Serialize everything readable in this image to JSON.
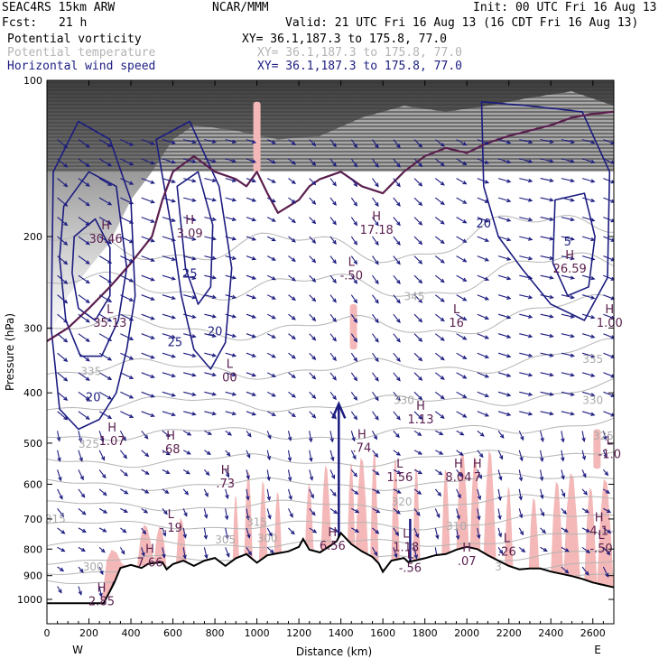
{
  "header": {
    "model": "SEAC4RS 15km ARW",
    "org": "NCAR/MMM",
    "init": "Init: 00 UTC Fri 16 Aug 13",
    "fcst_label": "Fcst:",
    "fcst_value": "21 h",
    "valid": "Valid: 21 UTC Fri 16 Aug 13 (16 CDT Fri 16 Aug 13)"
  },
  "legend": [
    {
      "name": "Potential vorticity",
      "xy": "XY=  36.1,187.3 to 175.8, 77.0",
      "color": "#000000"
    },
    {
      "name": "Potential temperature",
      "xy": "XY=  36.1,187.3 to 175.8, 77.0",
      "color": "#b4b4b4"
    },
    {
      "name": "Horizontal wind speed",
      "xy": "XY=  36.1,187.3 to 175.8, 77.0",
      "color": "#1c1c80"
    }
  ],
  "colors": {
    "pv_shade": "#f4b8b8",
    "pv_contour": "#5a1e4e",
    "theta": "#b4b4b4",
    "wind": "#1c1c80",
    "terrain": "#000000"
  },
  "chart_data": {
    "type": "cross-section",
    "xlabel": "Distance (km)",
    "ylabel": "Pressure (hPa)",
    "xlim": [
      0,
      2700
    ],
    "ylim": [
      1000,
      100
    ],
    "y_scale": "log",
    "x_ticks": [
      "0",
      "200",
      "400",
      "600",
      "800",
      "1000",
      "1200",
      "1400",
      "1600",
      "1800",
      "2000",
      "2200",
      "2400",
      "2600"
    ],
    "y_ticks": [
      "100",
      "200",
      "300",
      "400",
      "500",
      "600",
      "700",
      "800",
      "900",
      "1000"
    ],
    "end_labels": {
      "left": "W",
      "right": "E"
    },
    "terrain": [
      [
        0,
        1017
      ],
      [
        150,
        1017
      ],
      [
        270,
        1017
      ],
      [
        320,
        930
      ],
      [
        350,
        870
      ],
      [
        400,
        858
      ],
      [
        450,
        870
      ],
      [
        480,
        855
      ],
      [
        500,
        852
      ],
      [
        550,
        848
      ],
      [
        570,
        875
      ],
      [
        600,
        855
      ],
      [
        650,
        842
      ],
      [
        700,
        862
      ],
      [
        750,
        842
      ],
      [
        800,
        832
      ],
      [
        850,
        862
      ],
      [
        900,
        833
      ],
      [
        950,
        818
      ],
      [
        1000,
        850
      ],
      [
        1050,
        822
      ],
      [
        1100,
        815
      ],
      [
        1150,
        808
      ],
      [
        1200,
        792
      ],
      [
        1220,
        765
      ],
      [
        1250,
        802
      ],
      [
        1300,
        812
      ],
      [
        1350,
        788
      ],
      [
        1380,
        772
      ],
      [
        1400,
        745
      ],
      [
        1450,
        783
      ],
      [
        1500,
        808
      ],
      [
        1550,
        828
      ],
      [
        1580,
        852
      ],
      [
        1600,
        885
      ],
      [
        1640,
        842
      ],
      [
        1700,
        832
      ],
      [
        1720,
        847
      ],
      [
        1750,
        842
      ],
      [
        1800,
        833
      ],
      [
        1850,
        822
      ],
      [
        1900,
        818
      ],
      [
        1950,
        802
      ],
      [
        2000,
        792
      ],
      [
        2050,
        800
      ],
      [
        2100,
        822
      ],
      [
        2150,
        842
      ],
      [
        2200,
        862
      ],
      [
        2250,
        875
      ],
      [
        2300,
        872
      ],
      [
        2350,
        872
      ],
      [
        2400,
        884
      ],
      [
        2450,
        893
      ],
      [
        2500,
        902
      ],
      [
        2550,
        913
      ],
      [
        2600,
        928
      ],
      [
        2650,
        938
      ],
      [
        2700,
        948
      ]
    ],
    "highs_lows": [
      {
        "type": "H",
        "value": "2.85",
        "x": 260,
        "p": 998
      },
      {
        "type": "H",
        "value": "1.07",
        "x": 310,
        "p": 490
      },
      {
        "type": "H",
        "value": ".68",
        "x": 590,
        "p": 508
      },
      {
        "type": "H",
        "value": ".73",
        "x": 850,
        "p": 592
      },
      {
        "type": "L",
        "value": "-.19",
        "x": 590,
        "p": 720
      },
      {
        "type": "H",
        "value": "7.66",
        "x": 490,
        "p": 840
      },
      {
        "type": "H",
        "value": "6.56",
        "x": 1360,
        "p": 780
      },
      {
        "type": "H",
        "value": ".74",
        "x": 1500,
        "p": 505
      },
      {
        "type": "L",
        "value": "1.56",
        "x": 1680,
        "p": 575
      },
      {
        "type": "H",
        "value": "1.13",
        "x": 1780,
        "p": 445
      },
      {
        "type": "H",
        "value": "8.04",
        "x": 1960,
        "p": 575
      },
      {
        "type": "H",
        "value": "7",
        "x": 2050,
        "p": 575
      },
      {
        "type": "L",
        "value": "1.18",
        "x": 1710,
        "p": 785
      },
      {
        "type": "L",
        "value": "-.56",
        "x": 1730,
        "p": 860
      },
      {
        "type": "H",
        "value": ".07",
        "x": 2000,
        "p": 835
      },
      {
        "type": "L",
        "value": ".26",
        "x": 2190,
        "p": 800
      },
      {
        "type": "H",
        "value": "4.1",
        "x": 2630,
        "p": 730
      },
      {
        "type": "L",
        "value": "-.50",
        "x": 2640,
        "p": 790
      },
      {
        "type": "L",
        "value": "-1.0",
        "x": 2680,
        "p": 520
      },
      {
        "type": "H",
        "value": "17.18",
        "x": 1570,
        "p": 192
      },
      {
        "type": "L",
        "value": "-.50",
        "x": 1450,
        "p": 235
      },
      {
        "type": "L",
        "value": "16",
        "x": 1950,
        "p": 290
      },
      {
        "type": "H",
        "value": "26.59",
        "x": 2490,
        "p": 228
      },
      {
        "type": "H",
        "value": "1.00",
        "x": 2680,
        "p": 290
      },
      {
        "type": "H",
        "value": "30.46",
        "x": 280,
        "p": 200
      },
      {
        "type": "L",
        "value": "35.13",
        "x": 300,
        "p": 290
      },
      {
        "type": "L",
        "value": "00",
        "x": 870,
        "p": 370
      },
      {
        "type": "H",
        "value": "3.09",
        "x": 680,
        "p": 195
      }
    ],
    "wind_speed_labels": [
      {
        "value": "20",
        "x": 220,
        "p": 415
      },
      {
        "value": "25",
        "x": 680,
        "p": 240
      },
      {
        "value": "25",
        "x": 610,
        "p": 325
      },
      {
        "value": "20",
        "x": 800,
        "p": 310
      },
      {
        "value": "20",
        "x": 2080,
        "p": 192
      },
      {
        "value": "5",
        "x": 2480,
        "p": 208
      }
    ],
    "theta_labels": [
      {
        "value": "300",
        "x": 220,
        "p": 880
      },
      {
        "value": "325",
        "x": 200,
        "p": 510
      },
      {
        "value": "335",
        "x": 210,
        "p": 370
      },
      {
        "value": "330",
        "x": 1700,
        "p": 420
      },
      {
        "value": "330",
        "x": 2600,
        "p": 420
      },
      {
        "value": "335",
        "x": 2600,
        "p": 350
      },
      {
        "value": "325",
        "x": 2650,
        "p": 492
      },
      {
        "value": "320",
        "x": 1690,
        "p": 660
      },
      {
        "value": "310",
        "x": 1950,
        "p": 735
      },
      {
        "value": "300",
        "x": 1050,
        "p": 775
      },
      {
        "value": "315",
        "x": 1000,
        "p": 722
      },
      {
        "value": "305",
        "x": 850,
        "p": 780
      },
      {
        "value": "345",
        "x": 1750,
        "p": 265
      },
      {
        "value": "315",
        "x": 40,
        "p": 712
      },
      {
        "value": "3",
        "x": 2150,
        "p": 880
      }
    ]
  }
}
